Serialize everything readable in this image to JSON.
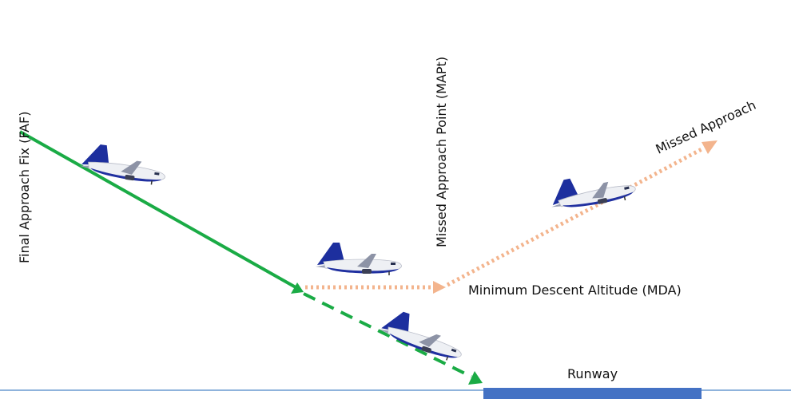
{
  "labels": {
    "faf": "Final Approach Fix (FAF)",
    "mapt": "Missed Approach Point (MAPt)",
    "missed_approach": "Missed Approach",
    "mda": "Minimum Descent Altitude (MDA)",
    "runway": "Runway"
  }
}
